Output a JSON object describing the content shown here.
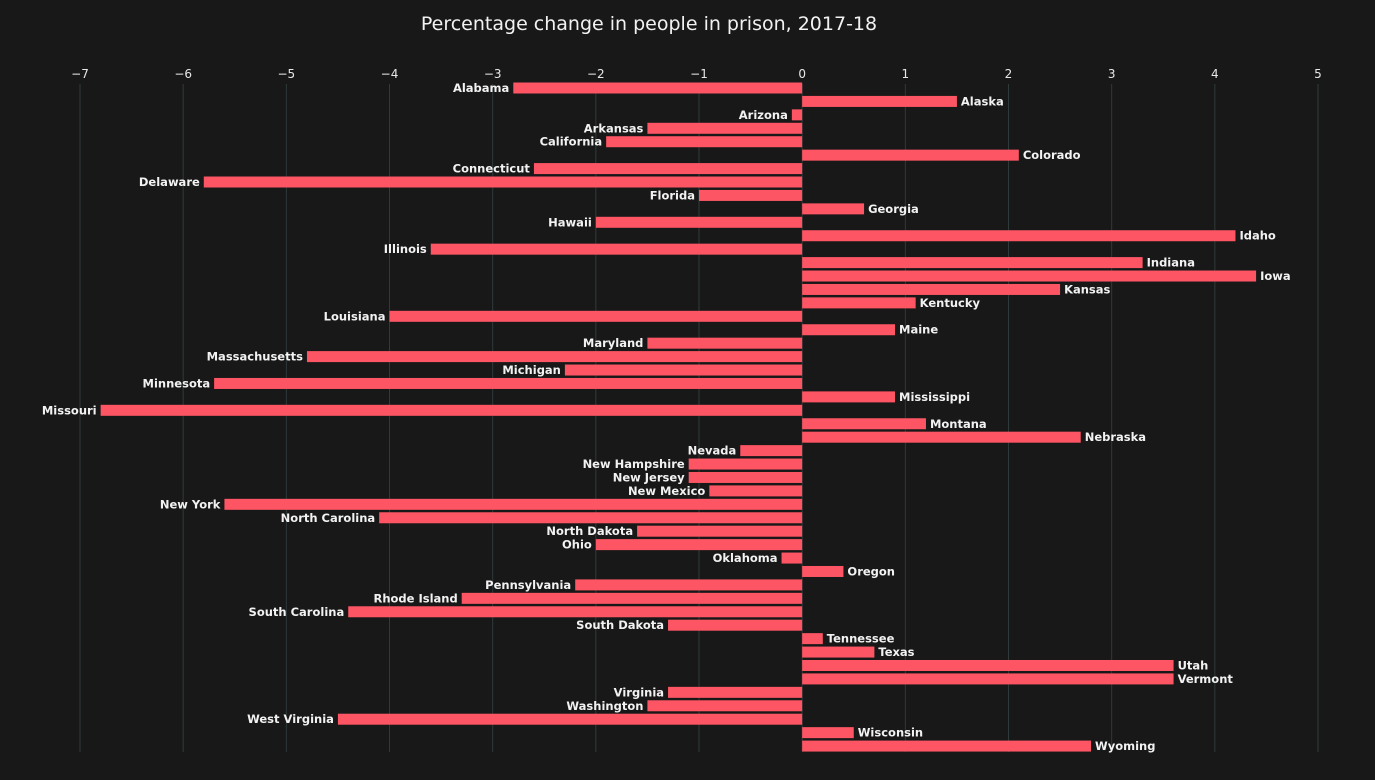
{
  "chart_data": {
    "type": "bar",
    "orientation": "horizontal",
    "title": "Percentage change in people in prison, 2017-18",
    "xlabel": "",
    "ylabel": "",
    "xlim": [
      -7,
      5
    ],
    "xticks": [
      -7,
      -6,
      -5,
      -4,
      -3,
      -2,
      -1,
      0,
      1,
      2,
      3,
      4,
      5
    ],
    "xtick_labels": [
      "−7",
      "−6",
      "−5",
      "−4",
      "−3",
      "−2",
      "−1",
      "0",
      "1",
      "2",
      "3",
      "4",
      "5"
    ],
    "grid": true,
    "legend": "none",
    "bar_color": "#fd5564",
    "background_color": "#181818",
    "categories": [
      "Alabama",
      "Alaska",
      "Arizona",
      "Arkansas",
      "California",
      "Colorado",
      "Connecticut",
      "Delaware",
      "Florida",
      "Georgia",
      "Hawaii",
      "Idaho",
      "Illinois",
      "Indiana",
      "Iowa",
      "Kansas",
      "Kentucky",
      "Louisiana",
      "Maine",
      "Maryland",
      "Massachusetts",
      "Michigan",
      "Minnesota",
      "Mississippi",
      "Missouri",
      "Montana",
      "Nebraska",
      "Nevada",
      "New Hampshire",
      "New Jersey",
      "New Mexico",
      "New York",
      "North Carolina",
      "North Dakota",
      "Ohio",
      "Oklahoma",
      "Oregon",
      "Pennsylvania",
      "Rhode Island",
      "South Carolina",
      "South Dakota",
      "Tennessee",
      "Texas",
      "Utah",
      "Vermont",
      "Virginia",
      "Washington",
      "West Virginia",
      "Wisconsin",
      "Wyoming"
    ],
    "values": [
      -2.8,
      1.5,
      -0.1,
      -1.5,
      -1.9,
      2.1,
      -2.6,
      -5.8,
      -1.0,
      0.6,
      -2.0,
      4.2,
      -3.6,
      3.3,
      4.4,
      2.5,
      1.1,
      -4.0,
      0.9,
      -1.5,
      -4.8,
      -2.3,
      -5.7,
      0.9,
      -6.8,
      1.2,
      2.7,
      -0.6,
      -1.1,
      -1.1,
      -0.9,
      -5.6,
      -4.1,
      -1.6,
      -2.0,
      -0.2,
      0.4,
      -2.2,
      -3.3,
      -4.4,
      -1.3,
      0.2,
      0.7,
      3.6,
      3.6,
      -1.3,
      -1.5,
      -4.5,
      0.5,
      2.8
    ]
  }
}
